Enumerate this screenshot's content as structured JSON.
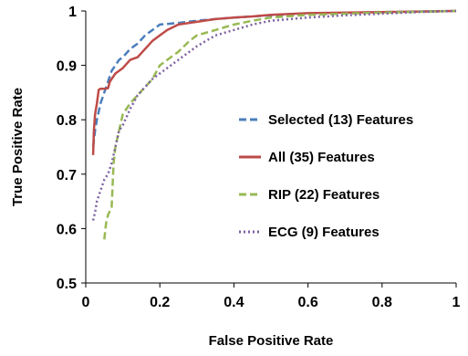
{
  "chart_data": {
    "type": "line",
    "title": "",
    "xlabel": "False Positive Rate",
    "ylabel": "True Positive Rate",
    "xlim": [
      0,
      1
    ],
    "ylim": [
      0.5,
      1
    ],
    "x_ticks": [
      "0",
      "0.2",
      "0.4",
      "0.6",
      "0.8",
      "1"
    ],
    "y_ticks": [
      "0.5",
      "0.6",
      "0.7",
      "0.8",
      "0.9",
      "1"
    ],
    "grid": false,
    "legend_position": "right",
    "series": [
      {
        "name": "Selected (13) Features",
        "color": "#4a7ebb",
        "dash": "dashed",
        "x": [
          0.02,
          0.025,
          0.03,
          0.04,
          0.05,
          0.06,
          0.07,
          0.08,
          0.09,
          0.1,
          0.12,
          0.14,
          0.16,
          0.18,
          0.2,
          0.25,
          0.3,
          0.35,
          0.4,
          0.45,
          0.5,
          0.6,
          0.8,
          1.0
        ],
        "y": [
          0.75,
          0.78,
          0.8,
          0.83,
          0.85,
          0.87,
          0.89,
          0.9,
          0.91,
          0.915,
          0.93,
          0.94,
          0.955,
          0.965,
          0.975,
          0.978,
          0.982,
          0.985,
          0.988,
          0.99,
          0.992,
          0.995,
          0.998,
          1.0
        ]
      },
      {
        "name": "All (35) Features",
        "color": "#be4b48",
        "dash": "solid",
        "x": [
          0.02,
          0.022,
          0.025,
          0.03,
          0.035,
          0.04,
          0.05,
          0.06,
          0.065,
          0.07,
          0.08,
          0.09,
          0.1,
          0.12,
          0.14,
          0.16,
          0.18,
          0.2,
          0.22,
          0.25,
          0.3,
          0.35,
          0.4,
          0.45,
          0.5,
          0.6,
          0.8,
          1.0
        ],
        "y": [
          0.735,
          0.78,
          0.81,
          0.83,
          0.855,
          0.857,
          0.857,
          0.858,
          0.87,
          0.875,
          0.885,
          0.89,
          0.895,
          0.91,
          0.915,
          0.93,
          0.945,
          0.955,
          0.965,
          0.975,
          0.98,
          0.985,
          0.988,
          0.99,
          0.993,
          0.996,
          0.998,
          1.0
        ]
      },
      {
        "name": "RIP (22) Features",
        "color": "#98b954",
        "dash": "dashed",
        "x": [
          0.05,
          0.055,
          0.06,
          0.07,
          0.075,
          0.08,
          0.09,
          0.1,
          0.12,
          0.14,
          0.16,
          0.18,
          0.2,
          0.22,
          0.25,
          0.28,
          0.3,
          0.35,
          0.4,
          0.45,
          0.5,
          0.6,
          0.8,
          1.0
        ],
        "y": [
          0.58,
          0.61,
          0.625,
          0.64,
          0.72,
          0.75,
          0.78,
          0.81,
          0.83,
          0.845,
          0.86,
          0.875,
          0.9,
          0.91,
          0.925,
          0.945,
          0.955,
          0.965,
          0.975,
          0.982,
          0.988,
          0.993,
          0.997,
          1.0
        ]
      },
      {
        "name": "ECG (9) Features",
        "color": "#7d60a0",
        "dash": "dotted",
        "x": [
          0.02,
          0.025,
          0.03,
          0.04,
          0.05,
          0.06,
          0.07,
          0.08,
          0.09,
          0.1,
          0.12,
          0.14,
          0.16,
          0.18,
          0.2,
          0.25,
          0.3,
          0.35,
          0.4,
          0.45,
          0.5,
          0.6,
          0.7,
          0.8,
          0.9,
          1.0
        ],
        "y": [
          0.615,
          0.63,
          0.65,
          0.67,
          0.69,
          0.7,
          0.72,
          0.75,
          0.78,
          0.79,
          0.82,
          0.845,
          0.86,
          0.875,
          0.885,
          0.91,
          0.935,
          0.955,
          0.965,
          0.975,
          0.982,
          0.988,
          0.992,
          0.995,
          0.998,
          1.0
        ]
      }
    ]
  }
}
